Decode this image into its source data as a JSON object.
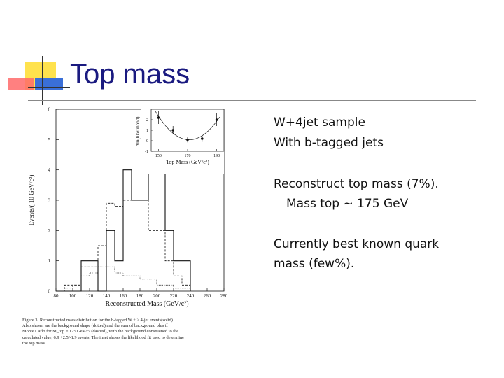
{
  "slide": {
    "title": "Top mass",
    "bullets": [
      "W+4jet sample",
      "With b-tagged jets",
      "Reconstruct top mass (7%).",
      "Mass top ~ 175 GeV",
      "Currently best  known quark",
      "mass (few%)."
    ],
    "accent_colors": {
      "title": "#1a1a80",
      "yellow": "#ffe24d",
      "red": "#ff6a6a",
      "blue": "#3a6fd8"
    }
  },
  "figure": {
    "caption_lines": [
      "Figure 3: Reconstructed mass distribution for the b-tagged W + ≥ 4-jet events(solid).",
      "Also shown are the background shape (dotted) and the sum of background plus tt̄",
      "Monte Carlo for M_top = 175 GeV/c² (dashed), with the background constrained to the",
      "calculated value, 6.9 +2.5/-1.9 events. The inset shows the likelihood fit used to determine",
      "the top mass."
    ]
  },
  "chart_data": [
    {
      "type": "bar",
      "xlabel": "Reconstructed Mass (GeV/c²)",
      "ylabel": "Events/( 10 GeV/c²)",
      "xlim": [
        80,
        280
      ],
      "ylim": [
        0,
        6
      ],
      "xticks": [
        "80",
        "100",
        "120",
        "140",
        "160",
        "180",
        "200",
        "220",
        "240",
        "260",
        "280"
      ],
      "yticks": [
        "0",
        "1",
        "2",
        "3",
        "4",
        "5",
        "6"
      ],
      "bin_edges": [
        80,
        90,
        100,
        110,
        120,
        130,
        140,
        150,
        160,
        170,
        180,
        190,
        200,
        210,
        220,
        230,
        240
      ],
      "series": [
        {
          "style": "solid",
          "values": [
            0,
            0,
            0,
            1,
            1,
            0,
            2,
            1,
            4,
            3,
            3,
            4,
            4,
            2,
            1,
            1
          ]
        },
        {
          "style": "dashed",
          "values": [
            0,
            0.2,
            0.2,
            0.8,
            0.8,
            1.5,
            2.9,
            2.8,
            3.0,
            3.0,
            3.0,
            2.0,
            2.0,
            1.0,
            0.5,
            0.2
          ]
        },
        {
          "style": "dotted",
          "values": [
            0,
            0.1,
            0.2,
            0.5,
            0.6,
            0.8,
            0.8,
            0.6,
            0.5,
            0.5,
            0.4,
            0.4,
            0.2,
            0.2,
            0.1,
            0.1
          ]
        }
      ],
      "grid": false
    },
    {
      "type": "scatter",
      "xlabel": "Top Mass (GeV/c²)",
      "ylabel": "Δln(likelihood)",
      "xlim": [
        145,
        195
      ],
      "ylim": [
        -1,
        3
      ],
      "xticks": [
        "150",
        "170",
        "190"
      ],
      "yticks": [
        "-1",
        "0",
        "1",
        "2"
      ],
      "x": [
        150,
        160,
        170,
        180,
        190
      ],
      "y": [
        2.2,
        1.0,
        0.1,
        0.2,
        2.0
      ],
      "yerr": [
        0.6,
        0.4,
        0.25,
        0.3,
        0.6
      ],
      "fit_curve": "parabola",
      "grid": false
    }
  ]
}
